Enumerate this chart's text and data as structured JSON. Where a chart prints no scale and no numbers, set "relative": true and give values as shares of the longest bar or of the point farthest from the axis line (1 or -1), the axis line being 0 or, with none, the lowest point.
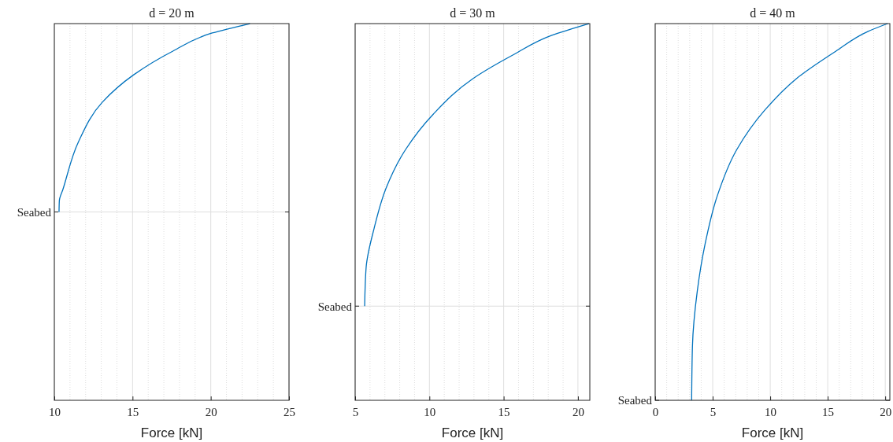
{
  "chart_data": [
    {
      "type": "line",
      "title": "d = 20 m",
      "xlabel": "Force [kN]",
      "relative": true,
      "xlim": [
        10,
        25
      ],
      "xticks": [
        10,
        15,
        20,
        25
      ],
      "grid": "x",
      "ref_lines": [
        {
          "axis": "y",
          "value": 0.5,
          "label": "Seabed"
        }
      ],
      "series": [
        {
          "color": "#0072bd",
          "x": [
            10.3,
            10.32,
            10.55,
            11.55,
            13.06,
            15.07,
            17.58,
            20.09,
            22.5
          ],
          "values": [
            0.5,
            0.53,
            0.56,
            0.687,
            0.791,
            0.864,
            0.927,
            0.975,
            1
          ]
        }
      ]
    },
    {
      "type": "line",
      "title": "d = 30 m",
      "xlabel": "Force [kN]",
      "relative": true,
      "xlim": [
        5,
        20.8
      ],
      "xticks": [
        5,
        10,
        15,
        20
      ],
      "grid": "x",
      "ref_lines": [
        {
          "axis": "y",
          "value": 0.25,
          "label": "Seabed"
        }
      ],
      "series": [
        {
          "color": "#0072bd",
          "x": [
            5.64,
            5.74,
            6.28,
            7.07,
            8.4,
            10.27,
            12.93,
            15.59,
            18.24,
            20.74
          ],
          "values": [
            0.25,
            0.353,
            0.457,
            0.562,
            0.666,
            0.76,
            0.854,
            0.916,
            0.969,
            1
          ]
        }
      ]
    },
    {
      "type": "line",
      "title": "d = 40 m",
      "xlabel": "Force [kN]",
      "relative": true,
      "xlim": [
        0,
        20.4
      ],
      "xticks": [
        0,
        5,
        10,
        15,
        20
      ],
      "grid": "x",
      "ref_lines": [
        {
          "axis": "y",
          "value": 0,
          "label": "Seabed"
        }
      ],
      "series": [
        {
          "color": "#0072bd",
          "x": [
            3.17,
            3.24,
            3.66,
            4.34,
            5.38,
            7.1,
            9.52,
            12.28,
            15.72,
            18.48,
            20.2
          ],
          "values": [
            0,
            0.144,
            0.29,
            0.415,
            0.541,
            0.666,
            0.77,
            0.854,
            0.927,
            0.979,
            1
          ]
        }
      ]
    }
  ]
}
